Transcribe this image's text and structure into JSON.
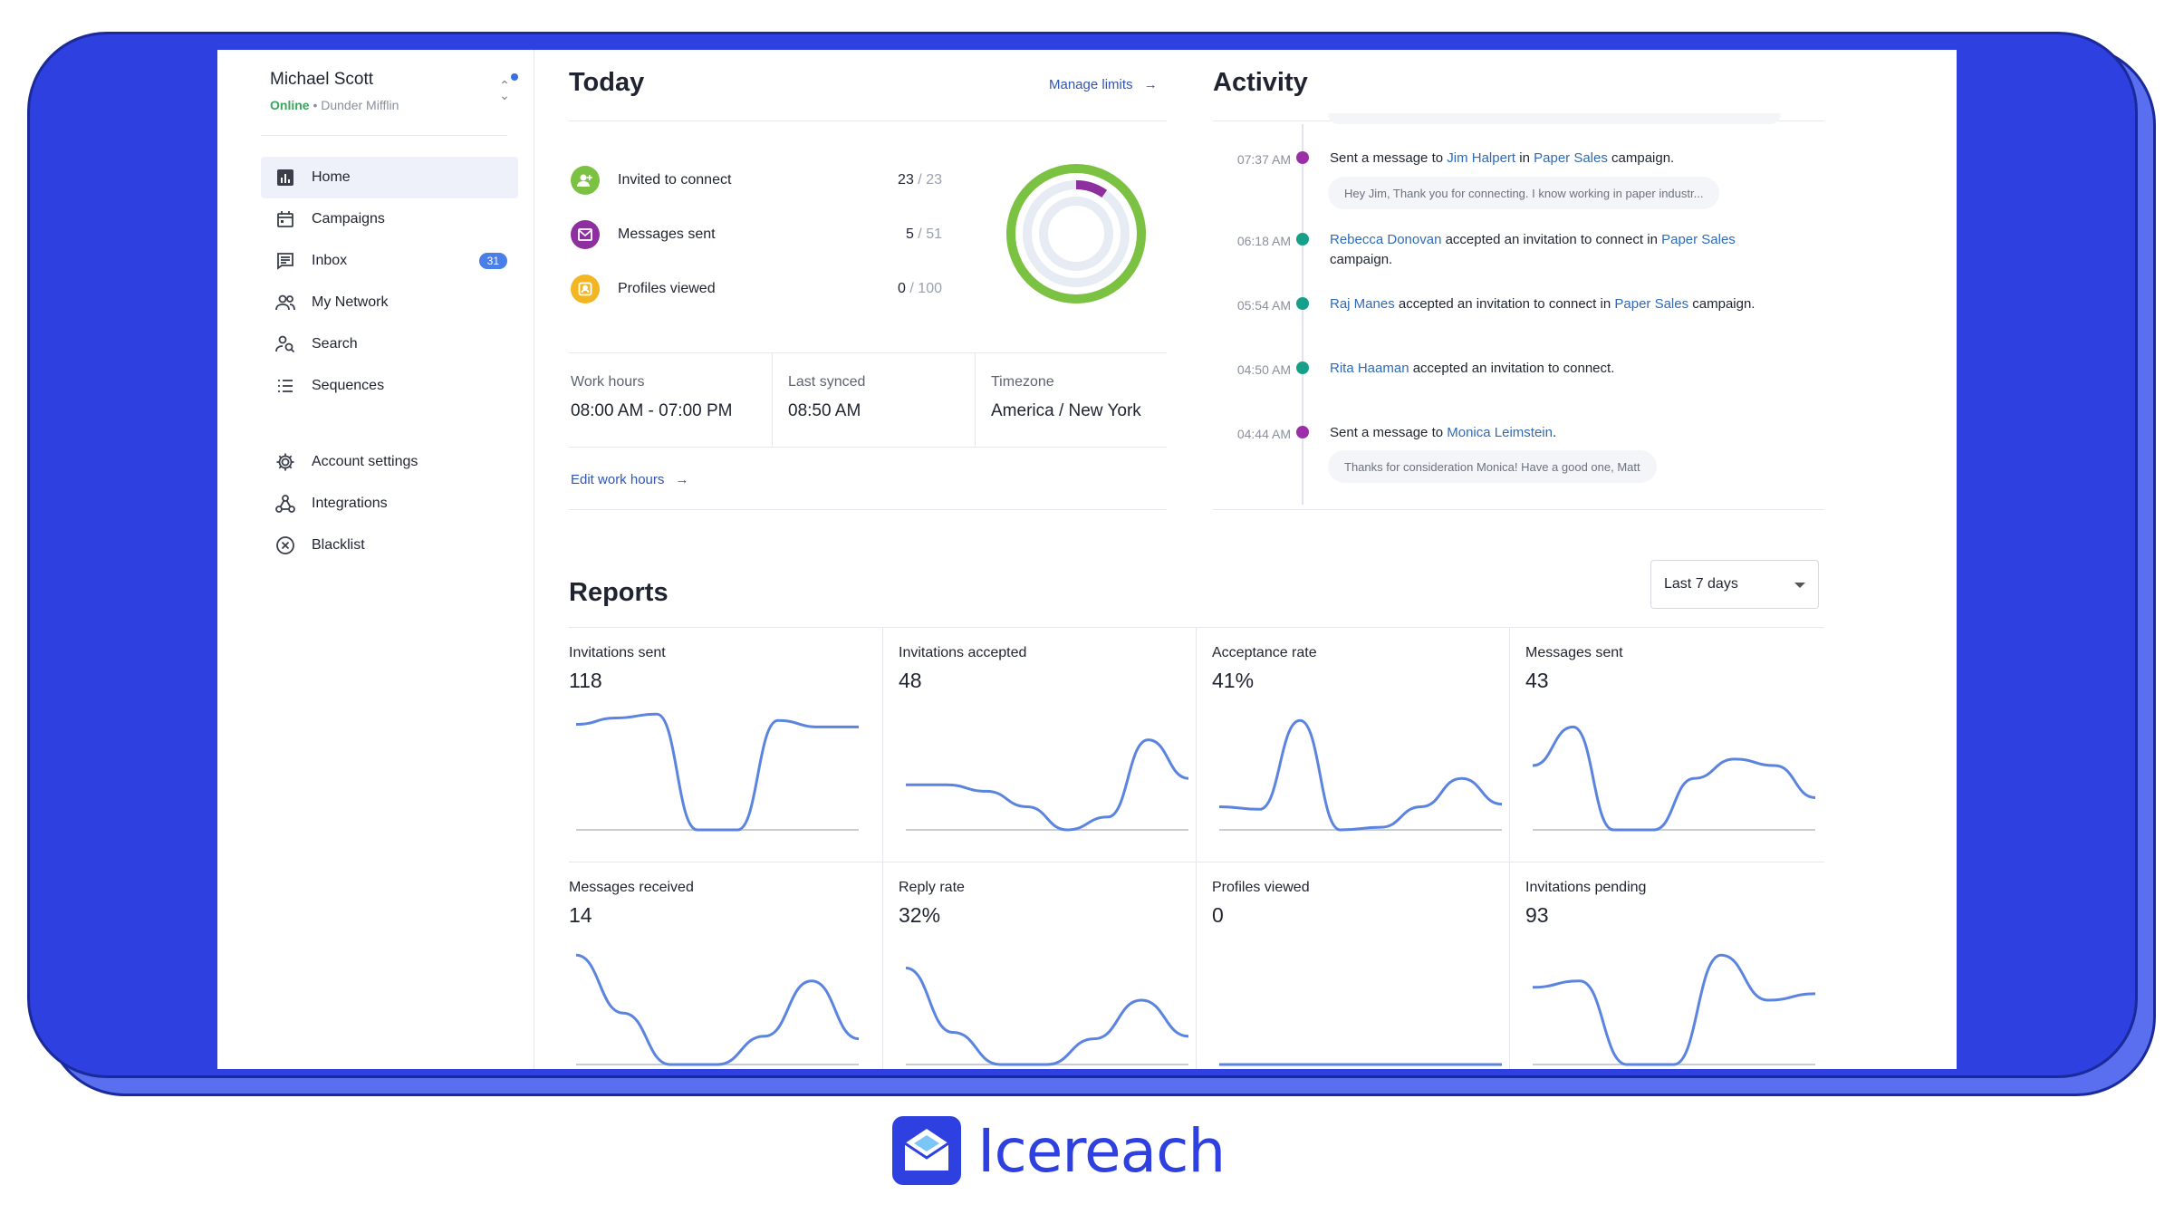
{
  "user": {
    "name": "Michael Scott",
    "status": "Online",
    "company": "Dunder Mifflin",
    "separator": "•"
  },
  "sidebar": {
    "items": [
      {
        "label": "Home",
        "icon": "bar-chart-icon",
        "active": true
      },
      {
        "label": "Campaigns",
        "icon": "calendar-icon"
      },
      {
        "label": "Inbox",
        "icon": "message-icon",
        "badge": "31"
      },
      {
        "label": "My Network",
        "icon": "people-icon"
      },
      {
        "label": "Search",
        "icon": "person-search-icon"
      },
      {
        "label": "Sequences",
        "icon": "list-icon"
      },
      {
        "label": "Account settings",
        "icon": "gear-icon"
      },
      {
        "label": "Integrations",
        "icon": "webhook-icon"
      },
      {
        "label": "Blacklist",
        "icon": "circle-x-icon"
      }
    ]
  },
  "today": {
    "title": "Today",
    "manage_limits": "Manage limits",
    "stats": [
      {
        "label": "Invited to connect",
        "value": "23",
        "slash": "/",
        "limit": "23",
        "color": "#7cc242",
        "fraction": 1.0
      },
      {
        "label": "Messages sent",
        "value": "5",
        "slash": "/",
        "limit": "51",
        "color": "#8e2fa0",
        "fraction": 0.098
      },
      {
        "label": "Profiles viewed",
        "value": "0",
        "slash": "/",
        "limit": "100",
        "color": "#f3b623",
        "fraction": 0.0
      }
    ],
    "work_hours": {
      "label": "Work hours",
      "value": "08:00 AM - 07:00 PM"
    },
    "last_synced": {
      "label": "Last synced",
      "value": "08:50 AM"
    },
    "timezone": {
      "label": "Timezone",
      "value": "America / New York"
    },
    "edit_work_hours": "Edit work hours"
  },
  "activity": {
    "title": "Activity",
    "items": [
      {
        "time": "07:37 AM",
        "dot": "#9b2fa8",
        "prefix": "Sent a message to ",
        "link1": "Jim Halpert",
        "mid": " in ",
        "link2": "Paper Sales",
        "suffix": " campaign.",
        "bubble": "Hey Jim, Thank you for connecting. I know working in paper industr..."
      },
      {
        "time": "06:18 AM",
        "dot": "#17a089",
        "link1": "Rebecca Donovan",
        "mid": " accepted an invitation to connect in ",
        "link2": "Paper Sales",
        "suffix": " campaign."
      },
      {
        "time": "05:54 AM",
        "dot": "#17a089",
        "link1": "Raj Manes",
        "mid": " accepted an invitation to connect in ",
        "link2": "Paper Sales",
        "suffix": " campaign."
      },
      {
        "time": "04:50 AM",
        "dot": "#17a089",
        "link1": "Rita Haaman",
        "mid": " accepted an invitation to connect."
      },
      {
        "time": "04:44 AM",
        "dot": "#9b2fa8",
        "prefix": "Sent a message to ",
        "link1": "Monica Leimstein",
        "suffix": ".",
        "bubble": "Thanks for consideration Monica! Have a good one, Matt"
      }
    ]
  },
  "reports": {
    "title": "Reports",
    "period": "Last 7 days",
    "line_color": "#5b84e0",
    "cards": [
      {
        "label": "Invitations sent",
        "value": "118",
        "points": [
          82,
          87,
          90,
          0,
          0,
          85,
          80,
          80
        ]
      },
      {
        "label": "Invitations accepted",
        "value": "48",
        "points": [
          35,
          35,
          30,
          18,
          0,
          10,
          70,
          40
        ]
      },
      {
        "label": "Acceptance rate",
        "value": "41%",
        "points": [
          18,
          16,
          85,
          0,
          2,
          18,
          40,
          20
        ]
      },
      {
        "label": "Messages sent",
        "value": "43",
        "points": [
          50,
          80,
          0,
          0,
          40,
          55,
          50,
          25
        ]
      },
      {
        "label": "Messages received",
        "value": "14",
        "points": [
          85,
          40,
          0,
          0,
          22,
          65,
          20
        ]
      },
      {
        "label": "Reply rate",
        "value": "32%",
        "points": [
          75,
          25,
          0,
          0,
          20,
          50,
          22
        ]
      },
      {
        "label": "Profiles viewed",
        "value": "0",
        "points": [
          0,
          0,
          0,
          0,
          0,
          0,
          0
        ]
      },
      {
        "label": "Invitations pending",
        "value": "93",
        "points": [
          60,
          65,
          0,
          0,
          85,
          50,
          55
        ]
      }
    ]
  },
  "logo": {
    "text": "Icereach",
    "color": "#2e40df"
  }
}
